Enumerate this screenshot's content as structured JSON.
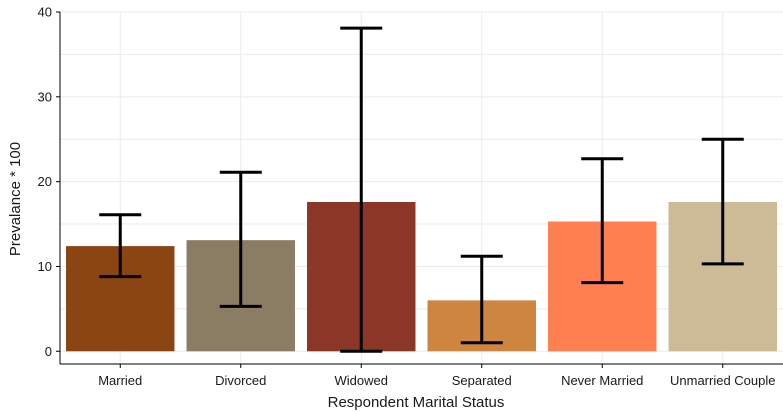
{
  "chart_data": {
    "type": "bar",
    "title": "",
    "xlabel": "Respondent Marital Status",
    "ylabel": "Prevalance * 100",
    "ylim": [
      -1.5,
      40
    ],
    "yticks": [
      0,
      10,
      20,
      30,
      40
    ],
    "grid": true,
    "categories": [
      "Married",
      "Divorced",
      "Widowed",
      "Separated",
      "Never Married",
      "Unmarried Couple"
    ],
    "values": [
      12.4,
      13.1,
      17.6,
      6.0,
      15.3,
      17.6
    ],
    "ci_lower": [
      8.8,
      5.3,
      0.0,
      1.0,
      8.1,
      10.3
    ],
    "ci_upper": [
      16.1,
      21.1,
      38.1,
      11.2,
      22.7,
      25.0
    ],
    "colors": [
      "#8B4513",
      "#8B7D64",
      "#8B3626",
      "#CD853F",
      "#FF7F50",
      "#CDBA96"
    ]
  }
}
